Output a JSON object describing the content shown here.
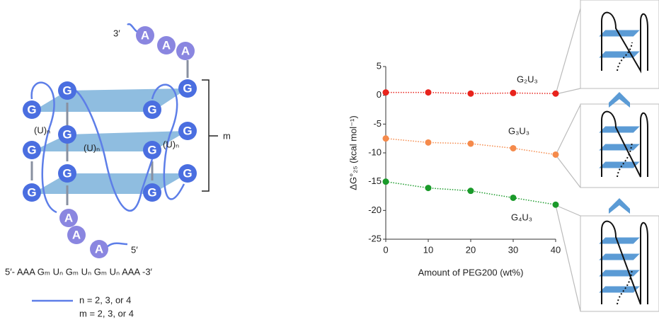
{
  "chart_data": {
    "type": "line",
    "x": [
      0,
      10,
      20,
      30,
      40
    ],
    "xlabel": "Amount of PEG200 (wt%)",
    "ylabel": "ΔG°₂₅ (kcal mol⁻¹)",
    "xlim": [
      0,
      40
    ],
    "xticks": [
      0,
      10,
      20,
      30,
      40
    ],
    "ylim": [
      -25,
      5
    ],
    "yticks": [
      5,
      0,
      -5,
      -10,
      -15,
      -20,
      -25
    ],
    "series": [
      {
        "name": "G₂U₃",
        "color": "#e8231c",
        "values": [
          0.5,
          0.5,
          0.3,
          0.4,
          0.3
        ]
      },
      {
        "name": "G₃U₃",
        "color": "#f58a4b",
        "values": [
          -7.5,
          -8.2,
          -8.4,
          -9.2,
          -10.3
        ]
      },
      {
        "name": "G₄U₃",
        "color": "#1a9a2a",
        "values": [
          -15,
          -16.1,
          -16.6,
          -17.8,
          -19
        ]
      }
    ]
  },
  "diagram": {
    "end3": "3′",
    "end5": "5′",
    "g": "G",
    "a": "A",
    "loop": "(U)ₙ",
    "m": "m",
    "sequence": "5′- AAA Gₘ Uₙ Gₘ Uₙ Gₘ Uₙ AAA -3′",
    "legend_n": "n  = 2, 3, or 4",
    "legend_m": "m = 2, 3, or 4"
  }
}
